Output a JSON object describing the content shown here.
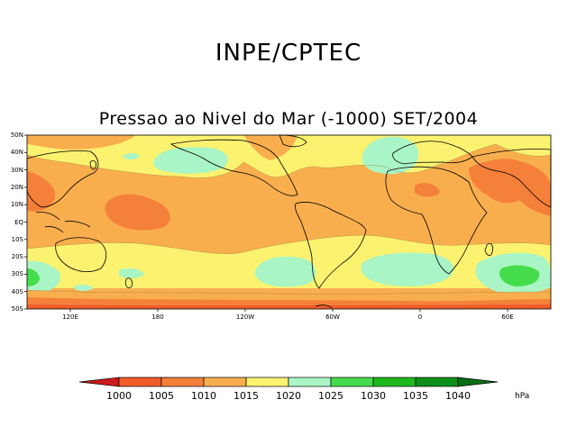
{
  "header": {
    "organization": "INPE/CPTEC",
    "title": "Pressao ao Nivel do Mar (-1000) SET/2004"
  },
  "axes": {
    "lat_labels": [
      "50N",
      "40N",
      "30N",
      "20N",
      "10N",
      "EQ",
      "10S",
      "20S",
      "30S",
      "40S",
      "50S"
    ],
    "lon_labels": [
      "120E",
      "180",
      "120W",
      "60W",
      "0",
      "60E"
    ]
  },
  "colorbar": {
    "labels": [
      "1000",
      "1005",
      "1010",
      "1015",
      "1020",
      "1025",
      "1030",
      "1035",
      "1040"
    ],
    "unit": "hPa",
    "colors": [
      "#cc1a1a",
      "#f25c2a",
      "#f5803a",
      "#f9ae4e",
      "#fbf270",
      "#aaf5c5",
      "#45dc4c",
      "#1eb81e",
      "#0e8e1a",
      "#0a6e14"
    ]
  },
  "colors": {
    "fill_1005": "#f5803a",
    "fill_1010": "#f9ae4e",
    "fill_1015": "#fbf270",
    "fill_1020": "#aaf5c5",
    "fill_1025": "#45dc4c",
    "fill_1000": "#f25c2a",
    "coast": "#000000"
  }
}
